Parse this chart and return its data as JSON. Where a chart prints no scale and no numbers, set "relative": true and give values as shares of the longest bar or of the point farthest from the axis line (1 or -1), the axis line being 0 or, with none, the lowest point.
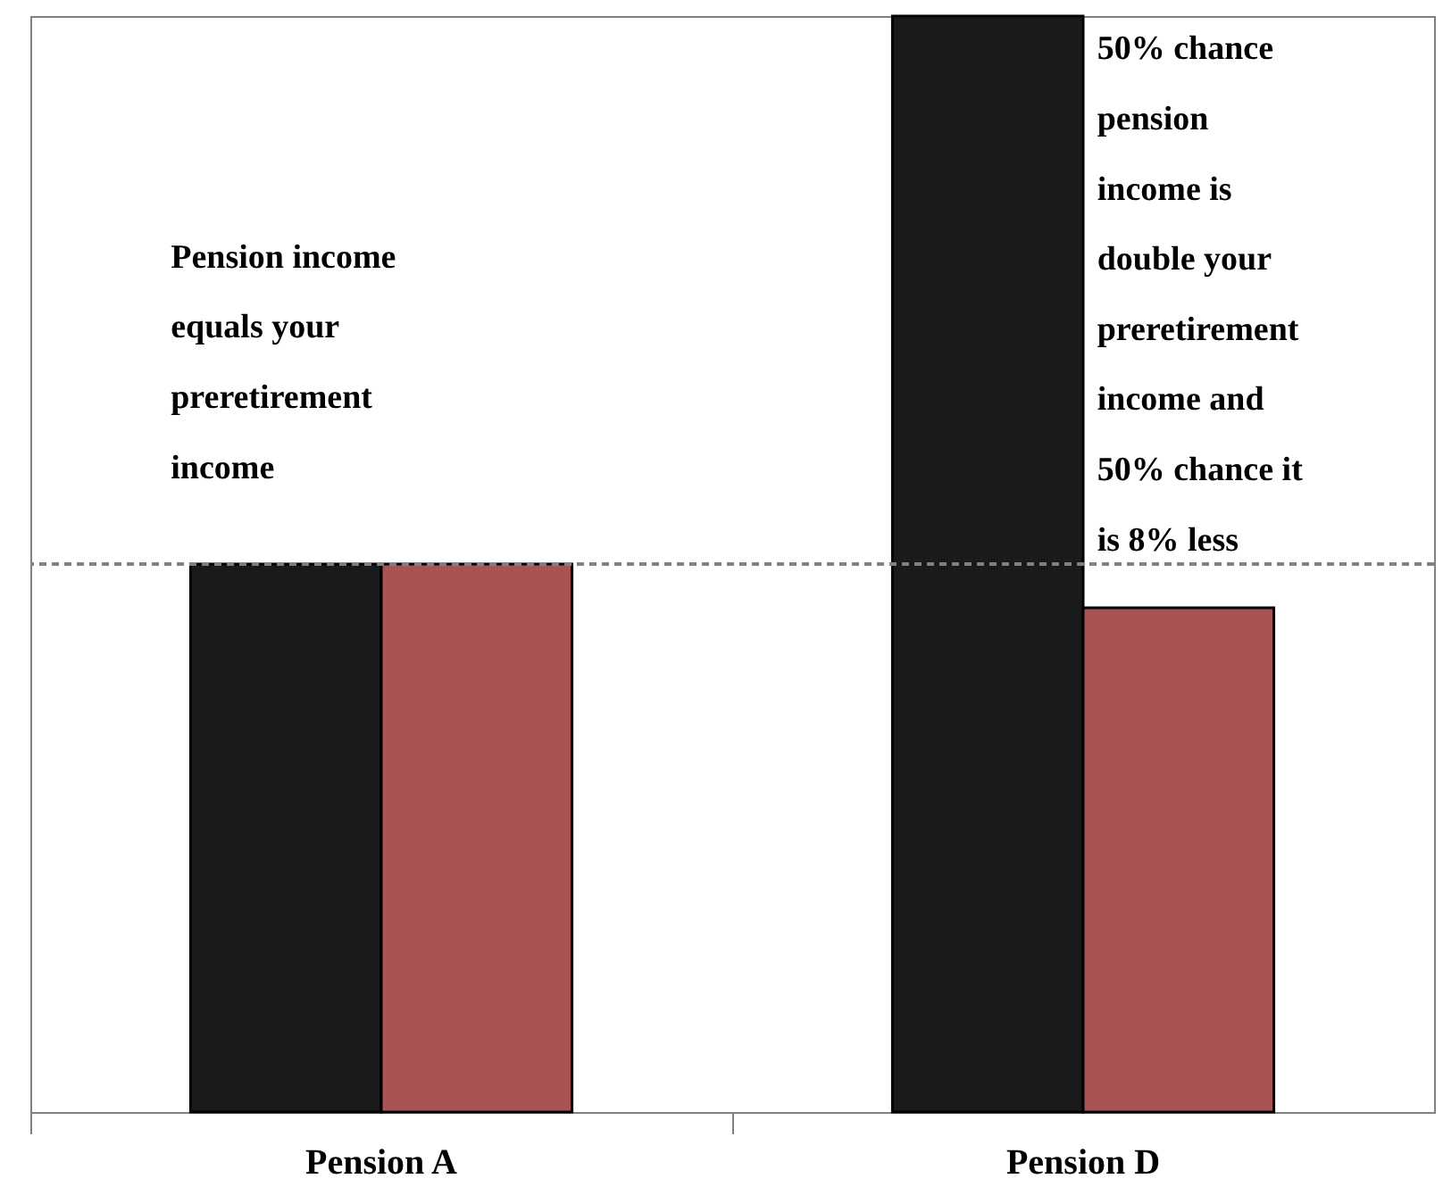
{
  "chart_data": {
    "type": "bar",
    "relative": true,
    "categories": [
      "Pension A",
      "Pension D"
    ],
    "series": [
      {
        "color": "#1a1a1a",
        "values": [
          0.5,
          1
        ]
      },
      {
        "color": "#a85454",
        "values": [
          0.5,
          0.46
        ]
      }
    ],
    "ref_lines": [
      {
        "axis": "y",
        "value": 0.5,
        "color": "#808080",
        "line_style": "dashed"
      }
    ],
    "annotations": [
      "Pension income equals your preretirement income",
      "50% chance pension income is double your preretirement income and 50% chance it is 8% less"
    ],
    "legend": false,
    "grid": false
  }
}
